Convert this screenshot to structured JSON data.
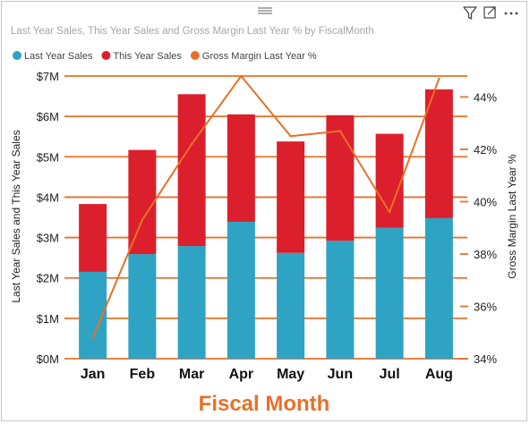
{
  "visual": {
    "icons": [
      "drag-handle-icon",
      "filter-icon",
      "focus-mode-icon",
      "more-options-icon"
    ]
  },
  "chart_data": {
    "type": "bar",
    "stacked": true,
    "title": "Last Year Sales, This Year Sales and Gross Margin Last Year % by FiscalMonth",
    "xlabel": "Fiscal Month",
    "ylabel": "Last Year Sales and This Year Sales",
    "y2label": "Gross Margin Last Year %",
    "categories": [
      "Jan",
      "Feb",
      "Mar",
      "Apr",
      "May",
      "Jun",
      "Jul",
      "Aug"
    ],
    "ylim": [
      0,
      7000000
    ],
    "y_ticks": [
      "$0M",
      "$1M",
      "$2M",
      "$3M",
      "$4M",
      "$5M",
      "$6M",
      "$7M"
    ],
    "y2lim": [
      34,
      44.8
    ],
    "y2_ticks": [
      "34%",
      "36%",
      "38%",
      "40%",
      "42%",
      "44%"
    ],
    "legend": {
      "position": "top-left"
    },
    "grid": true,
    "series": [
      {
        "name": "Last Year Sales",
        "type": "bar",
        "color": "#2EA3C3",
        "values": [
          2150000,
          2590000,
          2790000,
          3390000,
          2620000,
          2920000,
          3240000,
          3480000
        ]
      },
      {
        "name": "This Year Sales",
        "type": "bar",
        "color": "#DC1F2C",
        "values": [
          1680000,
          2580000,
          3760000,
          2660000,
          2760000,
          3110000,
          2330000,
          3190000
        ]
      },
      {
        "name": "Gross Margin Last Year %",
        "type": "line",
        "axis": "secondary",
        "color": "#E8702A",
        "values": [
          34.8,
          39.3,
          42.2,
          44.8,
          42.5,
          42.7,
          39.6,
          44.7
        ]
      }
    ]
  }
}
